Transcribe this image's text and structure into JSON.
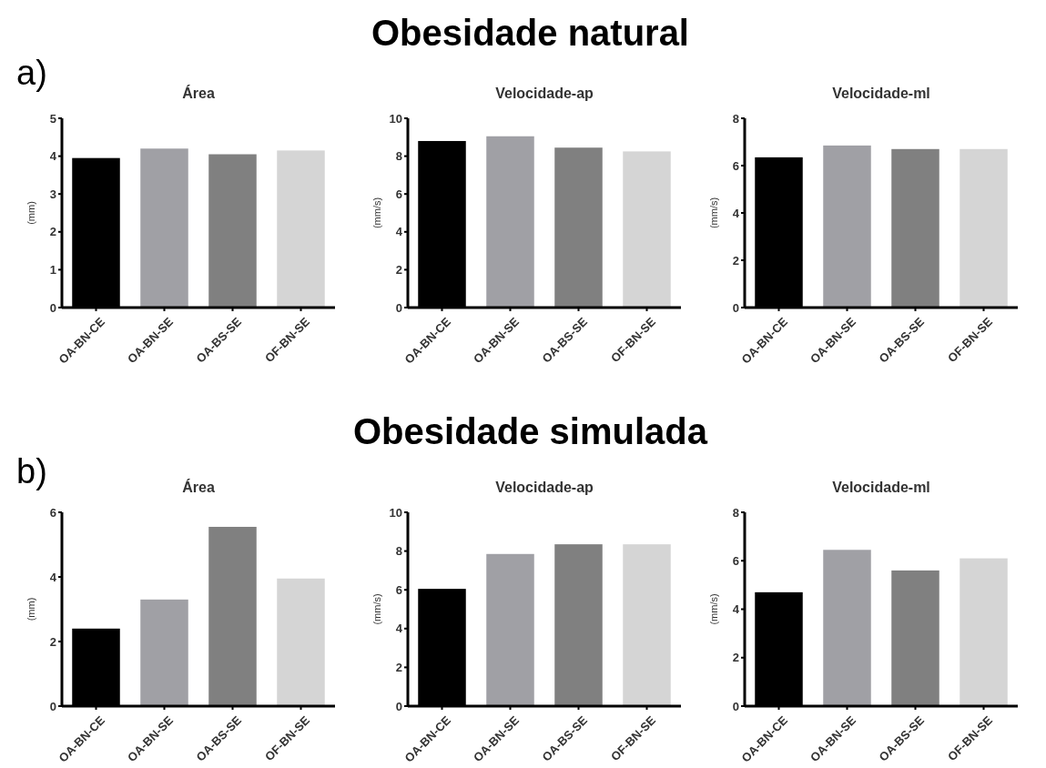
{
  "chart_data": [
    {
      "type": "bar",
      "title": "Área",
      "ylabel": "(mm)",
      "annotations": [
        "Obesidade natural",
        "a)"
      ],
      "categories": [
        "OA-BN-CE",
        "OA-BN-SE",
        "OA-BS-SE",
        "OF-BN-SE"
      ],
      "values": [
        3.95,
        4.2,
        4.05,
        4.15
      ],
      "colors": [
        "#000000",
        "#a0a0a5",
        "#808080",
        "#d5d5d5"
      ],
      "ylim": [
        0,
        5
      ],
      "yticks": [
        0,
        1,
        2,
        3,
        4,
        5
      ]
    },
    {
      "type": "bar",
      "title": "Velocidade-ap",
      "ylabel": "(mm/s)",
      "categories": [
        "OA-BN-CE",
        "OA-BN-SE",
        "OA-BS-SE",
        "OF-BN-SE"
      ],
      "values": [
        8.8,
        9.05,
        8.45,
        8.25
      ],
      "colors": [
        "#000000",
        "#a0a0a5",
        "#808080",
        "#d5d5d5"
      ],
      "ylim": [
        0,
        10
      ],
      "yticks": [
        0,
        2,
        4,
        6,
        8,
        10
      ]
    },
    {
      "type": "bar",
      "title": "Velocidade-ml",
      "ylabel": "(mm/s)",
      "categories": [
        "OA-BN-CE",
        "OA-BN-SE",
        "OA-BS-SE",
        "OF-BN-SE"
      ],
      "values": [
        6.35,
        6.85,
        6.7,
        6.7
      ],
      "colors": [
        "#000000",
        "#a0a0a5",
        "#808080",
        "#d5d5d5"
      ],
      "ylim": [
        0,
        8
      ],
      "yticks": [
        0,
        2,
        4,
        6,
        8
      ]
    },
    {
      "type": "bar",
      "title": "Área",
      "ylabel": "(mm)",
      "annotations": [
        "Obesidade simulada",
        "b)"
      ],
      "categories": [
        "OA-BN-CE",
        "OA-BN-SE",
        "OA-BS-SE",
        "OF-BN-SE"
      ],
      "values": [
        2.4,
        3.3,
        5.55,
        3.95
      ],
      "colors": [
        "#000000",
        "#a0a0a5",
        "#808080",
        "#d5d5d5"
      ],
      "ylim": [
        0,
        6
      ],
      "yticks": [
        0,
        2,
        4,
        6
      ]
    },
    {
      "type": "bar",
      "title": "Velocidade-ap",
      "ylabel": "(mm/s)",
      "categories": [
        "OA-BN-CE",
        "OA-BN-SE",
        "OA-BS-SE",
        "OF-BN-SE"
      ],
      "values": [
        6.05,
        7.85,
        8.35,
        8.35
      ],
      "colors": [
        "#000000",
        "#a0a0a5",
        "#808080",
        "#d5d5d5"
      ],
      "ylim": [
        0,
        10
      ],
      "yticks": [
        0,
        2,
        4,
        6,
        8,
        10
      ]
    },
    {
      "type": "bar",
      "title": "Velocidade-ml",
      "ylabel": "(mm/s)",
      "categories": [
        "OA-BN-CE",
        "OA-BN-SE",
        "OA-BS-SE",
        "OF-BN-SE"
      ],
      "values": [
        4.7,
        6.45,
        5.6,
        6.1
      ],
      "colors": [
        "#000000",
        "#a0a0a5",
        "#808080",
        "#d5d5d5"
      ],
      "ylim": [
        0,
        8
      ],
      "yticks": [
        0,
        2,
        4,
        6,
        8
      ]
    }
  ]
}
